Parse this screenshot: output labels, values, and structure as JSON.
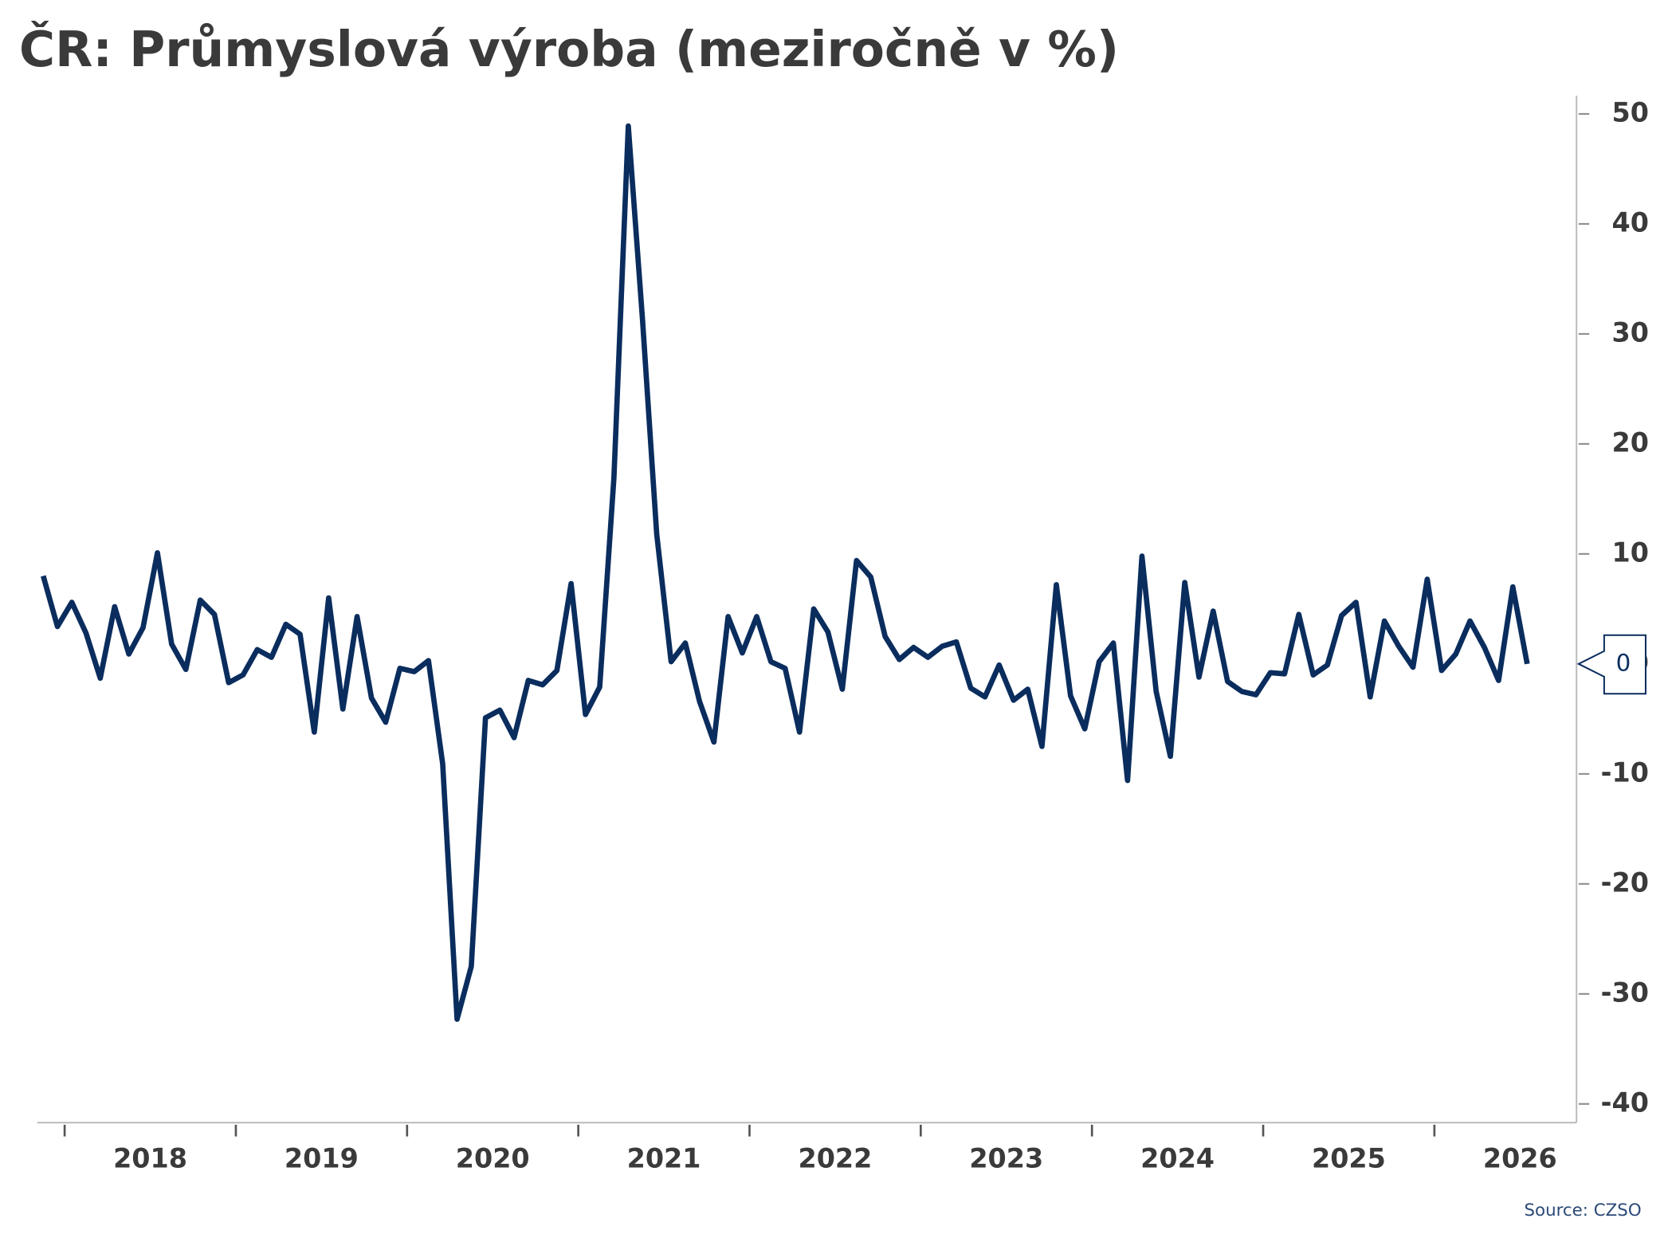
{
  "chart_data": {
    "type": "line",
    "title": "ČR: Průmyslová výroba (meziročně v %)",
    "source": "Source: CZSO",
    "color": "#0a2d5e",
    "x": [
      2017.875,
      2017.958,
      2018.042,
      2018.125,
      2018.208,
      2018.292,
      2018.375,
      2018.458,
      2018.542,
      2018.625,
      2018.708,
      2018.792,
      2018.875,
      2018.958,
      2019.042,
      2019.125,
      2019.208,
      2019.292,
      2019.375,
      2019.458,
      2019.542,
      2019.625,
      2019.708,
      2019.792,
      2019.875,
      2019.958,
      2020.042,
      2020.125,
      2020.208,
      2020.292,
      2020.375,
      2020.458,
      2020.542,
      2020.625,
      2020.708,
      2020.792,
      2020.875,
      2020.958,
      2021.042,
      2021.125,
      2021.208,
      2021.292,
      2021.375,
      2021.458,
      2021.542,
      2021.625,
      2021.708,
      2021.792,
      2021.875,
      2021.958,
      2022.042,
      2022.125,
      2022.208,
      2022.292,
      2022.375,
      2022.458,
      2022.542,
      2022.625,
      2022.708,
      2022.792,
      2022.875,
      2022.958,
      2023.042,
      2023.125,
      2023.208,
      2023.292,
      2023.375,
      2023.458,
      2023.542,
      2023.625,
      2023.708,
      2023.792,
      2023.875,
      2023.958,
      2024.042,
      2024.125,
      2024.208,
      2024.292,
      2024.375,
      2024.458,
      2024.542,
      2024.625,
      2024.708,
      2024.792,
      2024.875,
      2024.958,
      2025.042,
      2025.125,
      2025.208,
      2025.292,
      2025.375,
      2025.458,
      2025.542,
      2025.625,
      2025.708,
      2025.792,
      2025.875,
      2025.958,
      2026.042,
      2026.125,
      2026.208,
      2026.292,
      2026.375,
      2026.458,
      2026.542
    ],
    "values": [
      8.0,
      3.4,
      5.6,
      2.8,
      -1.3,
      5.2,
      0.9,
      3.3,
      10.1,
      1.8,
      -0.5,
      5.8,
      4.5,
      -1.7,
      -1.0,
      1.3,
      0.6,
      3.6,
      2.7,
      -6.2,
      6.0,
      -4.1,
      4.3,
      -3.1,
      -5.3,
      -0.4,
      -0.7,
      0.3,
      -9.1,
      -32.3,
      -27.5,
      -4.9,
      -4.2,
      -6.7,
      -1.5,
      -1.9,
      -0.6,
      7.3,
      -4.6,
      -2.1,
      16.9,
      48.9,
      31.3,
      11.8,
      0.2,
      1.9,
      -3.4,
      -7.1,
      4.3,
      1.0,
      4.3,
      0.2,
      -0.4,
      -6.2,
      5.0,
      2.9,
      -2.3,
      9.4,
      7.9,
      2.5,
      0.4,
      1.5,
      0.6,
      1.6,
      2.0,
      -2.2,
      -3.0,
      -0.1,
      -3.3,
      -2.3,
      -7.5,
      7.2,
      -2.9,
      -5.9,
      0.2,
      1.9,
      -10.6,
      9.8,
      -2.5,
      -8.4,
      7.4,
      -1.2,
      4.8,
      -1.6,
      -2.5,
      -2.8,
      -0.8,
      -0.9,
      4.5,
      -1.0,
      -0.1,
      4.4,
      5.6,
      -3.0,
      3.9,
      1.6,
      -0.3,
      7.7,
      -0.6,
      0.9,
      3.9,
      1.5,
      -1.5,
      7.0,
      0
    ],
    "xlim": [
      2017.84,
      2026.83
    ],
    "xticks": [
      2018,
      2019,
      2020,
      2021,
      2022,
      2023,
      2024,
      2025,
      2026
    ],
    "ylim": [
      -41.7,
      51.6
    ],
    "yticks": [
      -40,
      -30,
      -20,
      -10,
      0,
      10,
      20,
      30,
      40,
      50
    ]
  }
}
